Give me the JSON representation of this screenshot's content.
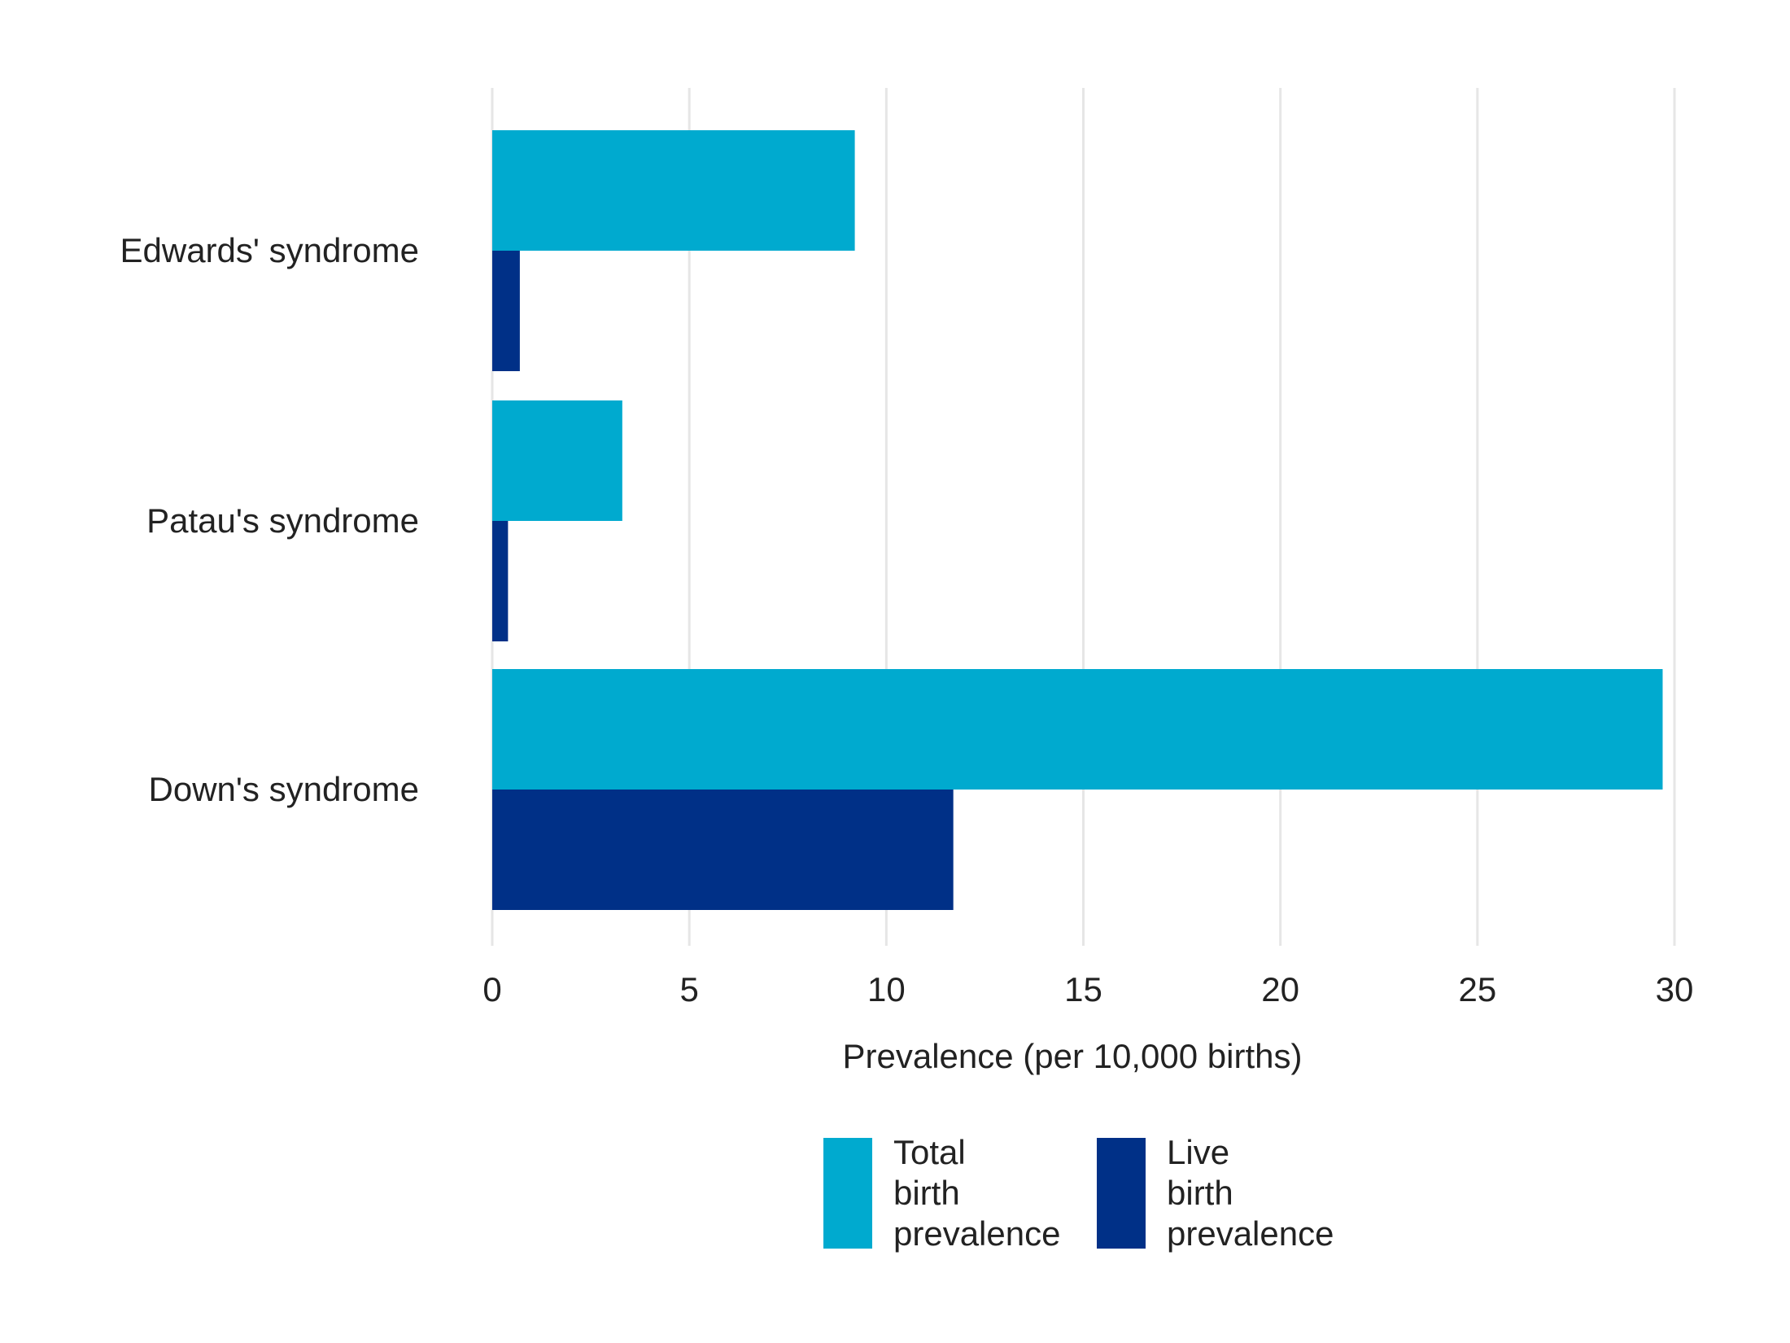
{
  "chart_data": {
    "type": "bar",
    "orientation": "horizontal",
    "categories": [
      "Edwards' syndrome",
      "Patau's syndrome",
      "Down's syndrome"
    ],
    "series": [
      {
        "name": "Total birth prevalence",
        "name_lines": [
          "Total",
          "birth",
          "prevalence"
        ],
        "color": "#00aacf",
        "values": [
          9.2,
          3.3,
          29.7
        ]
      },
      {
        "name": "Live birth prevalence",
        "name_lines": [
          "Live",
          "birth",
          "prevalence"
        ],
        "color": "#003087",
        "values": [
          0.7,
          0.4,
          11.7
        ]
      }
    ],
    "xlabel": "Prevalence (per 10,000 births)",
    "ylabel": "",
    "xlim": [
      0,
      30
    ],
    "xticks": [
      0,
      5,
      10,
      15,
      20,
      25,
      30
    ],
    "grid": "vertical",
    "legend_position": "bottom"
  }
}
